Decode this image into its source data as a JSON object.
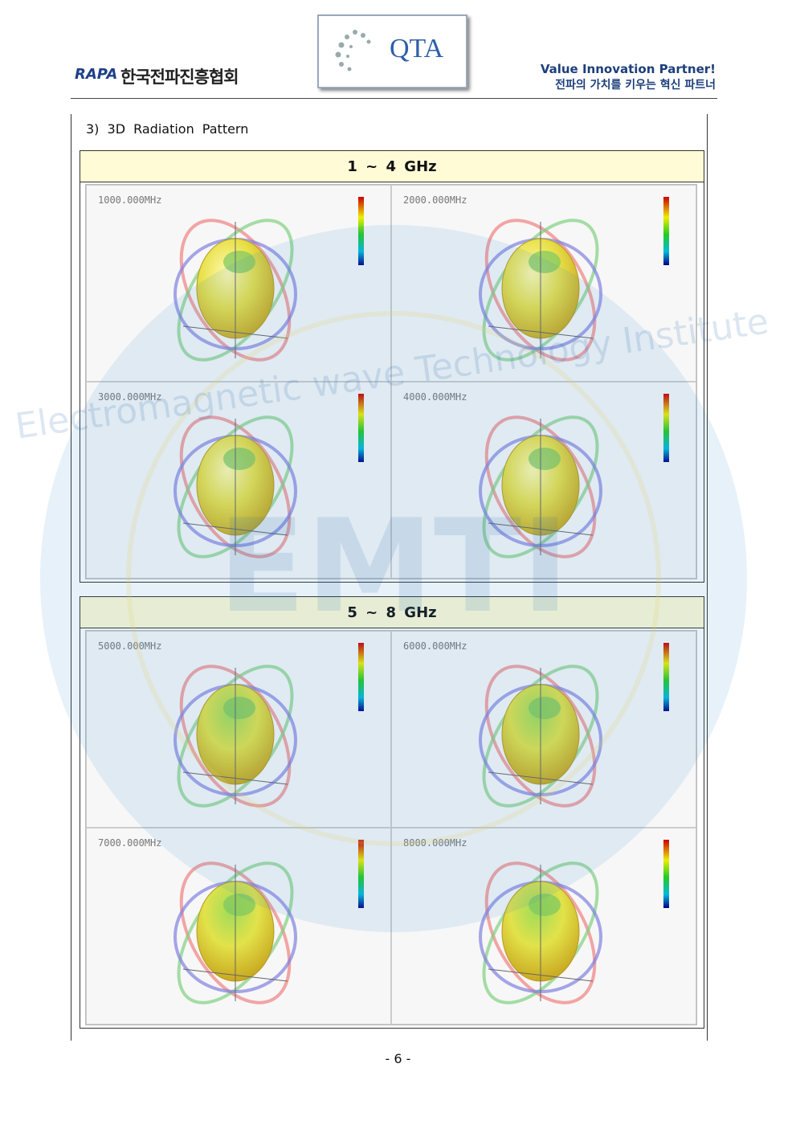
{
  "header": {
    "logo_left": "RAPA",
    "org_name": "한국전파진흥협회",
    "logo_center": "QTA",
    "slogan_en": "Value Innovation Partner!",
    "slogan_ko": "전파의 가치를 키우는 혁신 파트너"
  },
  "section_title": "3) 3D Radiation Pattern",
  "panels": [
    {
      "title": "1 ~ 4 GHz",
      "plots": [
        "1000.000MHz",
        "2000.000MHz",
        "3000.000MHz",
        "4000.000MHz"
      ]
    },
    {
      "title": "5 ~ 8 GHz",
      "plots": [
        "5000.000MHz",
        "6000.000MHz",
        "7000.000MHz",
        "8000.000MHz"
      ]
    }
  ],
  "watermark": {
    "text": "Electromagnetic wave Technology Institute",
    "logo": "EMTI"
  },
  "page_number": "- 6 -"
}
